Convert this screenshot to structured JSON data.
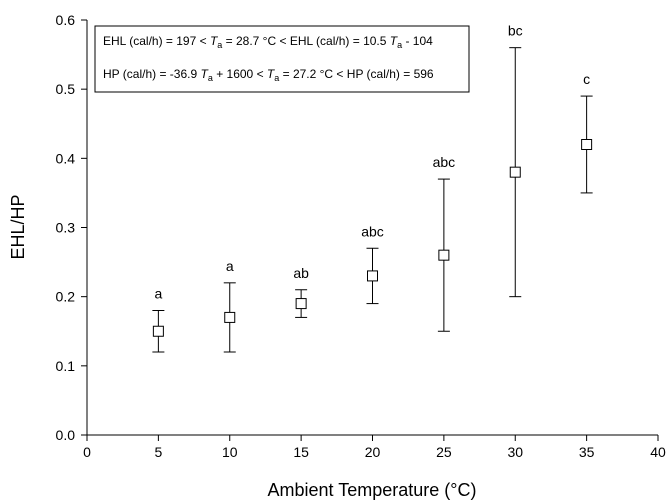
{
  "chart_data": {
    "type": "scatter",
    "title": "",
    "xlabel": "Ambient Temperature (°C)",
    "ylabel": "EHL/HP",
    "xlim": [
      0,
      40
    ],
    "ylim": [
      0.0,
      0.6
    ],
    "xticks": [
      0,
      5,
      10,
      15,
      20,
      25,
      30,
      35,
      40
    ],
    "yticks": [
      0.0,
      0.1,
      0.2,
      0.3,
      0.4,
      0.5,
      0.6
    ],
    "ytick_labels": [
      "0.0",
      "0.1",
      "0.2",
      "0.3",
      "0.4",
      "0.5",
      "0.6"
    ],
    "grid": false,
    "marker": "open-square",
    "points": [
      {
        "x": 5,
        "y": 0.15,
        "y_low": 0.12,
        "y_high": 0.18,
        "label": "a"
      },
      {
        "x": 10,
        "y": 0.17,
        "y_low": 0.12,
        "y_high": 0.22,
        "label": "a"
      },
      {
        "x": 15,
        "y": 0.19,
        "y_low": 0.17,
        "y_high": 0.21,
        "label": "ab"
      },
      {
        "x": 20,
        "y": 0.23,
        "y_low": 0.19,
        "y_high": 0.27,
        "label": "abc"
      },
      {
        "x": 25,
        "y": 0.26,
        "y_low": 0.15,
        "y_high": 0.37,
        "label": "abc"
      },
      {
        "x": 30,
        "y": 0.38,
        "y_low": 0.2,
        "y_high": 0.56,
        "label": "bc"
      },
      {
        "x": 35,
        "y": 0.42,
        "y_low": 0.35,
        "y_high": 0.49,
        "label": "c"
      }
    ],
    "annotation_box": {
      "placement": "top-left",
      "lines": [
        {
          "a": "EHL (cal/h) = 197 < ",
          "var": "T",
          "sub": "a",
          "b": " = 28.7 °C < EHL (cal/h) = 10.5 ",
          "var2": "T",
          "sub2": "a",
          "c": " - 104"
        },
        {
          "a": "HP (cal/h) = -36.9 ",
          "var": "T",
          "sub": "a",
          "b": " + 1600 < ",
          "var2": "T",
          "sub2": "a",
          "c": " = 27.2 °C < HP (cal/h) = 596"
        }
      ]
    }
  }
}
